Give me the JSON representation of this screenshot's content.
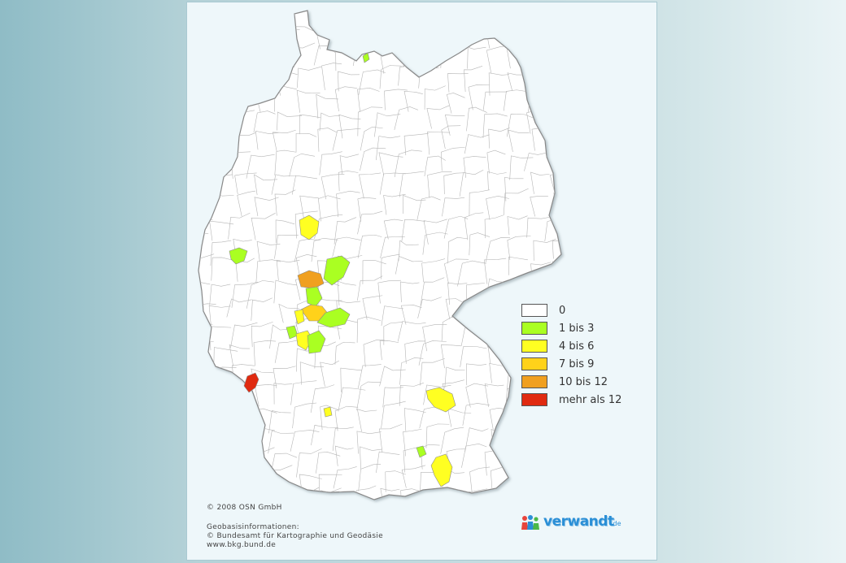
{
  "legend": [
    {
      "label": "0",
      "color": "#ffffff"
    },
    {
      "label": "1 bis 3",
      "color": "#aaff22"
    },
    {
      "label": "4 bis 6",
      "color": "#ffff22"
    },
    {
      "label": "7 bis 9",
      "color": "#ffd21a"
    },
    {
      "label": "10 bis 12",
      "color": "#f0a020"
    },
    {
      "label": "mehr als 12",
      "color": "#e02a10"
    }
  ],
  "credits": {
    "copyright": "© 2008 OSN GmbH",
    "geo_title": "Geobasisinformationen:",
    "geo_agency": "© Bundesamt für Kartographie und Geodäsie",
    "geo_url": "www.bkg.bund.de"
  },
  "brand": {
    "name": "verwandt",
    "tld": ".de",
    "icon": "people-logo-icon"
  },
  "colors": {
    "border": "#888888",
    "background": "#eef7fa",
    "land": "#ffffff"
  }
}
